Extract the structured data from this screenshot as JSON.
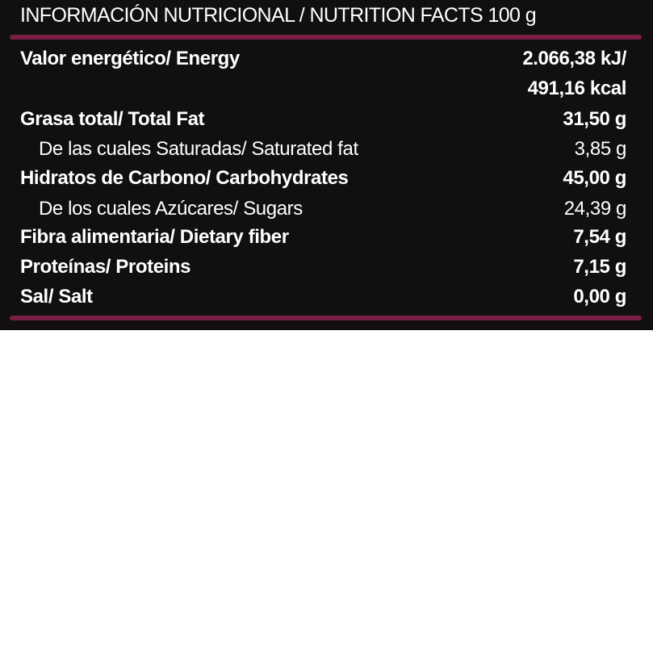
{
  "title": "INFORMACIÓN NUTRICIONAL / NUTRITION FACTS 100 g",
  "colors": {
    "background": "#12100e",
    "rule": "#7a1e45",
    "text": "#ffffff"
  },
  "rows": [
    {
      "label": "Valor energético/ Energy",
      "value": "2.066,38 kJ/",
      "level": "main"
    },
    {
      "label": "",
      "value": "491,16 kcal",
      "level": "main"
    },
    {
      "label": "Grasa total/ Total Fat",
      "value": "31,50 g",
      "level": "main"
    },
    {
      "label": "De las cuales Saturadas/ Saturated fat",
      "value": "3,85 g",
      "level": "sub"
    },
    {
      "label": "Hidratos de Carbono/ Carbohydrates",
      "value": "45,00 g",
      "level": "main"
    },
    {
      "label": "De los cuales Azúcares/ Sugars",
      "value": "24,39 g",
      "level": "sub"
    },
    {
      "label": "Fibra alimentaria/ Dietary fiber",
      "value": "7,54 g",
      "level": "main"
    },
    {
      "label": "Proteínas/ Proteins",
      "value": "7,15 g",
      "level": "main"
    },
    {
      "label": "Sal/ Salt",
      "value": "0,00 g",
      "level": "main"
    }
  ]
}
